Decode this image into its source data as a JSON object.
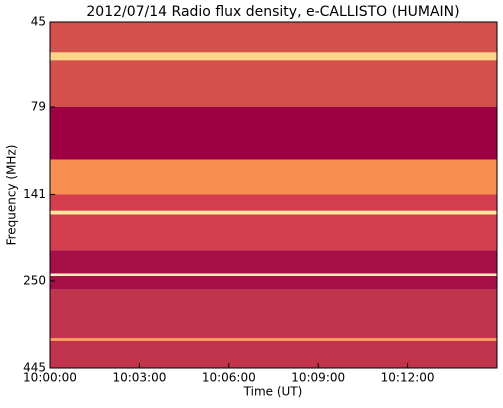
{
  "chart_data": {
    "type": "spectrogram",
    "title": "2012/07/14  Radio flux density, e-CALLISTO (HUMAIN)",
    "xlabel": "Time (UT)",
    "ylabel": "Frequency (MHz)",
    "xlim": [
      "10:00:00",
      "10:15:00"
    ],
    "xticks": [
      "10:00:00",
      "10:03:00",
      "10:06:00",
      "10:09:00",
      "10:12:00"
    ],
    "ylim": [
      45,
      445
    ],
    "yticks": [
      45,
      79,
      141,
      250,
      445
    ],
    "ylog": true,
    "yinverted": true,
    "bands": [
      {
        "range": [
          45,
          79
        ],
        "color": "#d4504a"
      },
      {
        "range": [
          79,
          112
        ],
        "color": "#9e0142"
      },
      {
        "range": [
          112,
          141
        ],
        "color": "#f98e52"
      },
      {
        "range": [
          141,
          204
        ],
        "color": "#d53e4f"
      },
      {
        "range": [
          204,
          265
        ],
        "color": "#a50f45"
      },
      {
        "range": [
          265,
          445
        ],
        "color": "#c0354c"
      },
      {
        "range": [
          55,
          58
        ],
        "color": "#fdd58a"
      },
      {
        "range": [
          157,
          161
        ],
        "color": "#fee8a0"
      },
      {
        "range": [
          238,
          242
        ],
        "color": "#fef0c0"
      },
      {
        "range": [
          365,
          372
        ],
        "color": "#f7a060"
      }
    ]
  }
}
